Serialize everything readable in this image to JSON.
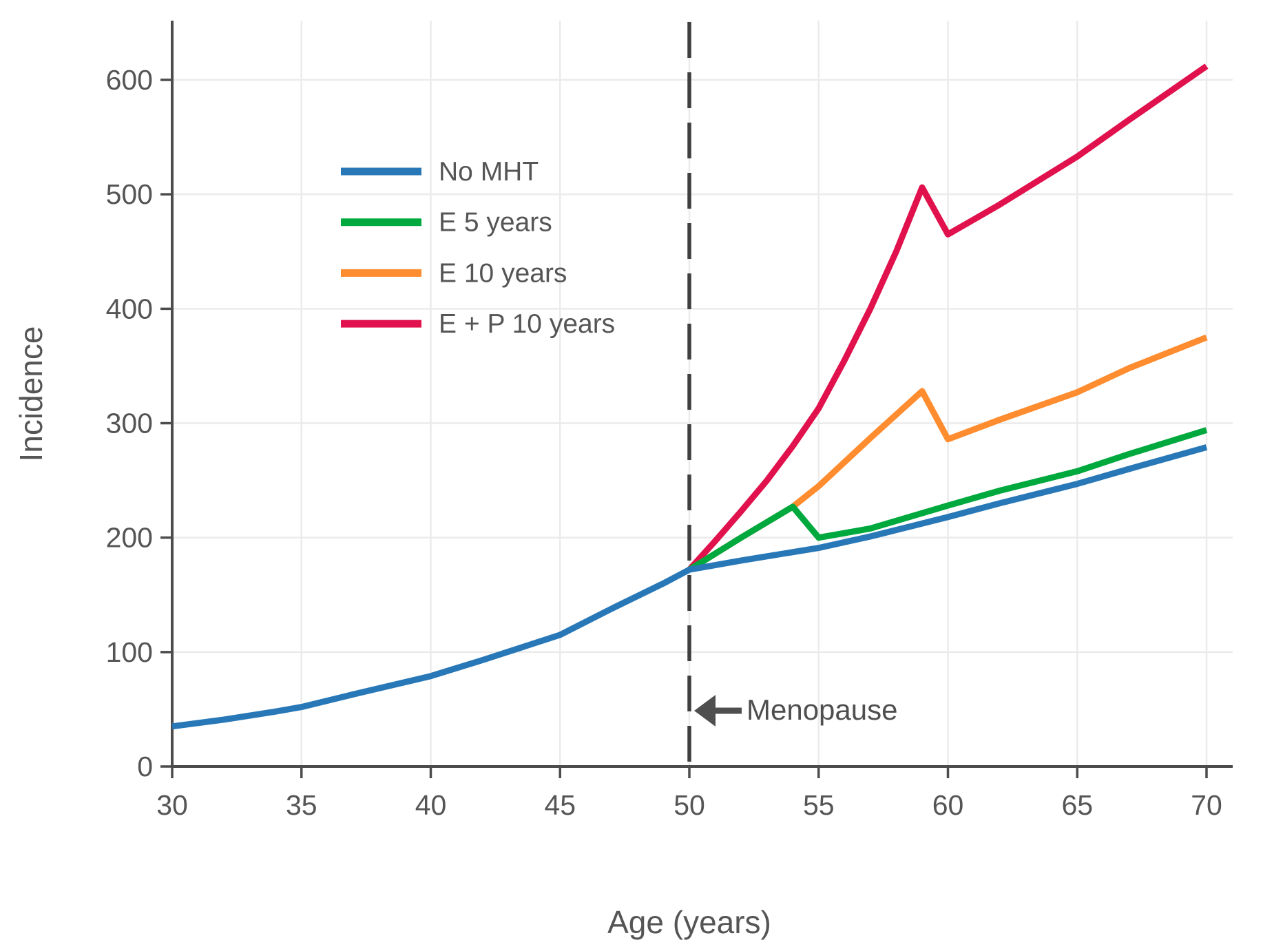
{
  "chart_data": {
    "type": "line",
    "title": "",
    "xlabel": "Age (years)",
    "ylabel": "Incidence",
    "xlim": [
      30,
      70
    ],
    "ylim": [
      0,
      600
    ],
    "x_ticks": [
      30,
      35,
      40,
      45,
      50,
      55,
      60,
      65,
      70
    ],
    "y_ticks": [
      0,
      100,
      200,
      300,
      400,
      500,
      600
    ],
    "grid": true,
    "legend_position": "upper-left-inside",
    "series": [
      {
        "name": "No MHT",
        "color": "#2878b8",
        "points": [
          [
            30,
            35
          ],
          [
            32,
            41
          ],
          [
            34,
            48
          ],
          [
            35,
            52
          ],
          [
            37,
            63
          ],
          [
            40,
            79
          ],
          [
            42,
            93
          ],
          [
            45,
            115
          ],
          [
            47,
            138
          ],
          [
            49,
            160
          ],
          [
            50,
            172
          ],
          [
            52,
            180
          ],
          [
            55,
            191
          ],
          [
            57,
            201
          ],
          [
            60,
            218
          ],
          [
            62,
            230
          ],
          [
            65,
            247
          ],
          [
            67,
            260
          ],
          [
            70,
            279
          ]
        ]
      },
      {
        "name": "E 5 years",
        "color": "#00a93e",
        "points": [
          [
            50,
            172
          ],
          [
            52,
            200
          ],
          [
            54,
            227
          ],
          [
            55,
            200
          ],
          [
            57,
            208
          ],
          [
            60,
            228
          ],
          [
            62,
            241
          ],
          [
            65,
            258
          ],
          [
            67,
            273
          ],
          [
            70,
            294
          ]
        ]
      },
      {
        "name": "E 10 years",
        "color": "#ff8c2e",
        "points": [
          [
            50,
            172
          ],
          [
            52,
            200
          ],
          [
            54,
            227
          ],
          [
            55,
            245
          ],
          [
            57,
            287
          ],
          [
            59,
            328
          ],
          [
            60,
            286
          ],
          [
            62,
            303
          ],
          [
            65,
            327
          ],
          [
            67,
            348
          ],
          [
            70,
            375
          ]
        ]
      },
      {
        "name": "E + P 10 years",
        "color": "#e0114c",
        "points": [
          [
            50,
            172
          ],
          [
            51,
            197
          ],
          [
            52,
            223
          ],
          [
            53,
            250
          ],
          [
            54,
            280
          ],
          [
            55,
            313
          ],
          [
            56,
            355
          ],
          [
            57,
            400
          ],
          [
            58,
            450
          ],
          [
            59,
            506
          ],
          [
            60,
            465
          ],
          [
            62,
            491
          ],
          [
            65,
            533
          ],
          [
            67,
            565
          ],
          [
            70,
            612
          ]
        ]
      }
    ],
    "annotation": {
      "text": "Menopause",
      "x_value": 50,
      "arrow": "left-arrow"
    },
    "style_colors": {
      "axis": "#4c4c4c",
      "text": "#555555",
      "grid": "#ebebeb",
      "dashed": "#3f3f3f",
      "annotation": "#4f4f4f",
      "background": "#ffffff"
    }
  }
}
